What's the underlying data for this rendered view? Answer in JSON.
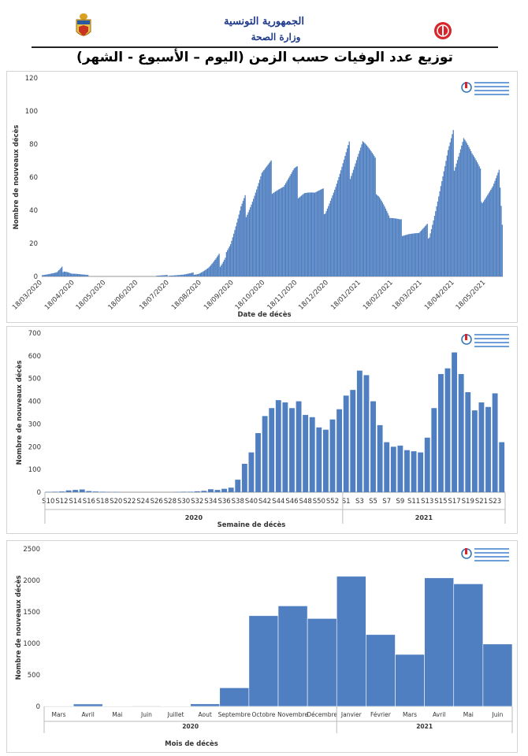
{
  "header": {
    "line1": "الجمهورية التونسية",
    "line2": "وزارة الصحة",
    "title": "توزيع عدد الوفيات حسب الزمن (اليوم – الأسبوع - الشهر)"
  },
  "colors": {
    "bar": "#4f7fc0",
    "header_text": "#1f3a8a",
    "logo_red": "#d7262b"
  },
  "icons": {
    "left": "tunisia-emblem-icon",
    "right": "ministry-health-logo-icon",
    "watermark": "observatory-logo-icon"
  },
  "chart_data": [
    {
      "type": "bar",
      "ylabel": "Nombre de nouveaux décès",
      "xlabel": "Date de décès",
      "ylim": [
        0,
        120
      ],
      "yticks": [
        0,
        20,
        40,
        60,
        80,
        100,
        120
      ],
      "x_start": "18/03/2020",
      "x_end": "03/06/2021",
      "xticks": [
        "18/03/2020",
        "18/04/2020",
        "18/05/2020",
        "18/06/2020",
        "18/07/2020",
        "18/08/2020",
        "18/09/2020",
        "18/10/2020",
        "18/11/2020",
        "18/12/2020",
        "18/01/2021",
        "18/02/2021",
        "18/03/2021",
        "18/04/2021",
        "18/05/2021"
      ],
      "anchors": [
        [
          "18/03/2020",
          1
        ],
        [
          "01/04/2020",
          2
        ],
        [
          "08/04/2020",
          5
        ],
        [
          "15/04/2020",
          2
        ],
        [
          "25/04/2020",
          1
        ],
        [
          "10/05/2020",
          0
        ],
        [
          "20/06/2020",
          0
        ],
        [
          "01/08/2020",
          1
        ],
        [
          "15/08/2020",
          2
        ],
        [
          "25/08/2020",
          5
        ],
        [
          "05/09/2020",
          10
        ],
        [
          "15/09/2020",
          20
        ],
        [
          "25/09/2020",
          38
        ],
        [
          "05/10/2020",
          48
        ],
        [
          "15/10/2020",
          60
        ],
        [
          "25/10/2020",
          60
        ],
        [
          "05/11/2020",
          55
        ],
        [
          "15/11/2020",
          58
        ],
        [
          "25/11/2020",
          55
        ],
        [
          "05/12/2020",
          48
        ],
        [
          "15/12/2020",
          45
        ],
        [
          "25/12/2020",
          55
        ],
        [
          "05/01/2021",
          68
        ],
        [
          "15/01/2021",
          78
        ],
        [
          "20/01/2021",
          82
        ],
        [
          "27/01/2021",
          70
        ],
        [
          "05/02/2021",
          55
        ],
        [
          "15/02/2021",
          35
        ],
        [
          "25/02/2021",
          30
        ],
        [
          "05/03/2021",
          28
        ],
        [
          "15/03/2021",
          25
        ],
        [
          "25/03/2021",
          28
        ],
        [
          "05/04/2021",
          55
        ],
        [
          "12/04/2021",
          70
        ],
        [
          "20/04/2021",
          80
        ],
        [
          "27/04/2021",
          88
        ],
        [
          "05/05/2021",
          70
        ],
        [
          "15/05/2021",
          52
        ],
        [
          "25/05/2021",
          55
        ],
        [
          "31/05/2021",
          60
        ],
        [
          "03/06/2021",
          28
        ]
      ]
    },
    {
      "type": "bar",
      "ylabel": "Nombre de nouveaux décès",
      "xlabel": "Semaine de décès",
      "ylim": [
        0,
        700
      ],
      "yticks": [
        0,
        100,
        200,
        300,
        400,
        500,
        600,
        700
      ],
      "categories": [
        "S10",
        "S11",
        "S12",
        "S13",
        "S14",
        "S15",
        "S16",
        "S17",
        "S18",
        "S19",
        "S20",
        "S21",
        "S22",
        "S23",
        "S24",
        "S25",
        "S26",
        "S27",
        "S28",
        "S29",
        "S30",
        "S31",
        "S32",
        "S33",
        "S34",
        "S35",
        "S36",
        "S37",
        "S38",
        "S39",
        "S40",
        "S41",
        "S42",
        "S43",
        "S44",
        "S45",
        "S46",
        "S47",
        "S48",
        "S49",
        "S50",
        "S51",
        "S52",
        "S53",
        "S1",
        "S2",
        "S3",
        "S4",
        "S5",
        "S6",
        "S7",
        "S8",
        "S9",
        "S10",
        "S11",
        "S12",
        "S13",
        "S14",
        "S15",
        "S16",
        "S17",
        "S18",
        "S19",
        "S20",
        "S21",
        "S22",
        "S23",
        "S24"
      ],
      "tick_labels": [
        "S10",
        "S12",
        "S14",
        "S16",
        "S18",
        "S20",
        "S22",
        "S24",
        "S26",
        "S28",
        "S30",
        "S32",
        "S34",
        "S36",
        "S38",
        "S40",
        "S42",
        "S44",
        "S46",
        "S48",
        "S50",
        "S52",
        "S1",
        "S3",
        "S5",
        "S7",
        "S9",
        "S11",
        "S13",
        "S15",
        "S17",
        "S19",
        "S21",
        "S23"
      ],
      "values": [
        1,
        2,
        3,
        8,
        10,
        12,
        5,
        3,
        2,
        1,
        1,
        0,
        0,
        0,
        0,
        0,
        0,
        0,
        0,
        1,
        2,
        2,
        4,
        6,
        13,
        10,
        15,
        20,
        55,
        125,
        175,
        260,
        335,
        370,
        405,
        395,
        370,
        400,
        340,
        330,
        285,
        275,
        320,
        365,
        425,
        450,
        535,
        515,
        400,
        295,
        220,
        200,
        205,
        185,
        180,
        175,
        240,
        370,
        520,
        545,
        615,
        520,
        440,
        360,
        395,
        375,
        435,
        220
      ],
      "groups": [
        {
          "label": "2020",
          "span": 44
        },
        {
          "label": "2021",
          "span": 24
        }
      ]
    },
    {
      "type": "bar",
      "ylabel": "Nombre de nouveaux décès",
      "xlabel": "Mois de décès",
      "ylim": [
        0,
        2500
      ],
      "yticks": [
        0,
        500,
        1000,
        1500,
        2000,
        2500
      ],
      "categories": [
        "Mars",
        "Avril",
        "Mai",
        "Juin",
        "Juillet",
        "Aout",
        "Septembre",
        "Octobre",
        "Novembre",
        "Décembre",
        "Janvier",
        "Février",
        "Mars",
        "Avril",
        "Mai",
        "Juin"
      ],
      "values": [
        8,
        38,
        3,
        1,
        3,
        40,
        295,
        1440,
        1595,
        1395,
        2065,
        1140,
        825,
        2040,
        1945,
        990
      ],
      "groups": [
        {
          "label": "2020",
          "span": 10
        },
        {
          "label": "2021",
          "span": 6
        }
      ]
    }
  ]
}
